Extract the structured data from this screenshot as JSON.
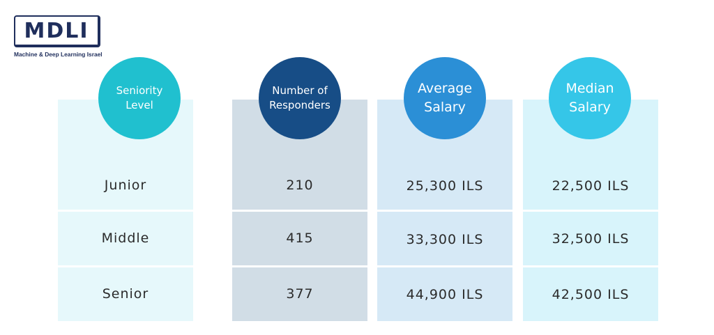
{
  "brand": {
    "logo_text": "MDLI",
    "tagline": "Machine & Deep Learning Israel"
  },
  "colors": {
    "col_bg": [
      "#e6f8fb",
      "#d1dde6",
      "#d6e9f6",
      "#d8f4fb"
    ],
    "bubble": [
      "#20c0cf",
      "#174d86",
      "#2b8fd6",
      "#35c6e8"
    ]
  },
  "chart_data": {
    "type": "table",
    "columns": [
      {
        "line1": "Seniority",
        "line2": "Level"
      },
      {
        "line1": "Number of",
        "line2": "Responders"
      },
      {
        "line1": "Average",
        "line2": "Salary"
      },
      {
        "line1": "Median",
        "line2": "Salary"
      }
    ],
    "rows": [
      {
        "level": "Junior",
        "responders": "210",
        "average": "25,300 ILS",
        "median": "22,500 ILS"
      },
      {
        "level": "Middle",
        "responders": "415",
        "average": "33,300 ILS",
        "median": "32,500 ILS"
      },
      {
        "level": "Senior",
        "responders": "377",
        "average": "44,900 ILS",
        "median": "42,500 ILS"
      }
    ]
  }
}
